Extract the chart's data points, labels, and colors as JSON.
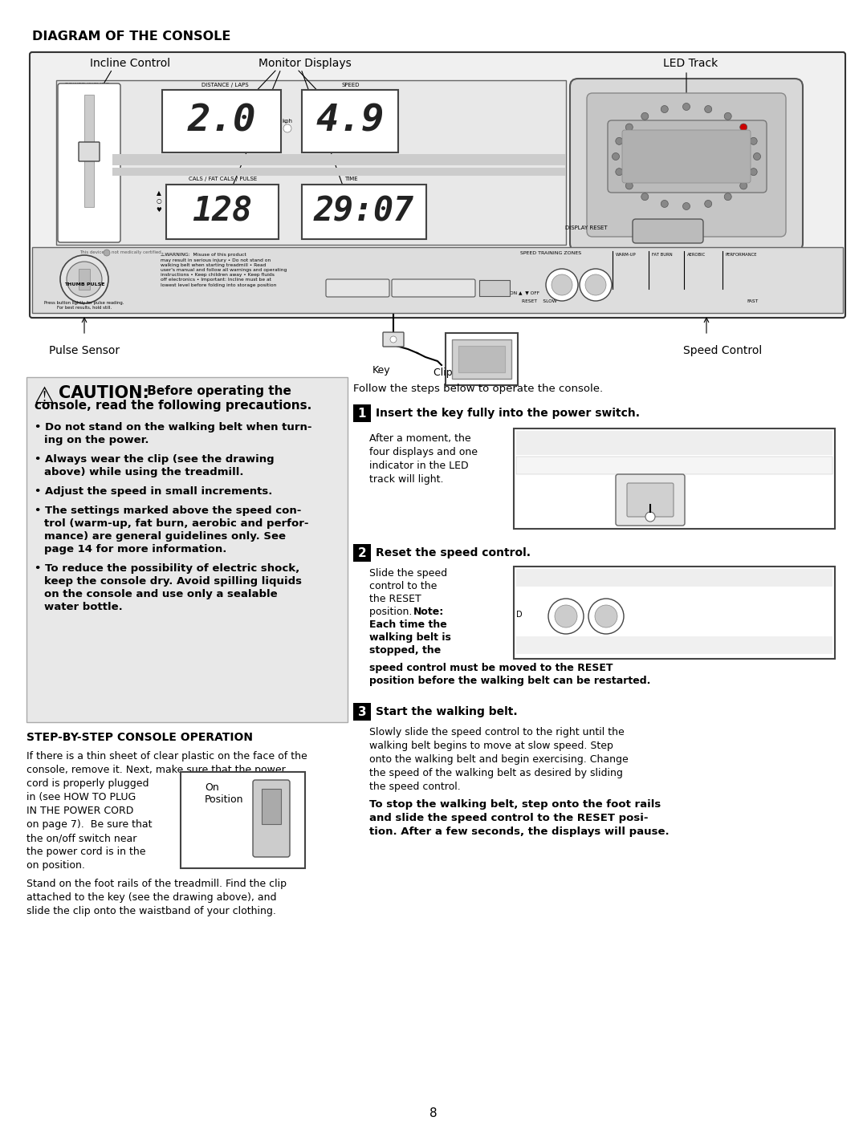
{
  "title_diagram": "DIAGRAM OF THE CONSOLE",
  "label_incline": "Incline Control",
  "label_monitor": "Monitor Displays",
  "label_led": "LED Track",
  "label_pulse": "Pulse Sensor",
  "label_key": "Key",
  "label_clip": "Clip",
  "label_speed_ctrl": "Speed Control",
  "caution_bullets": [
    "Do not stand on the walking belt when turn-\ning on the power.",
    "Always wear the clip (see the drawing\nabove) while using the treadmill.",
    "Adjust the speed in small increments.",
    "The settings marked above the speed con-\ntrol (warm-up, fat burn, aerobic and perfor-\nmance) are general guidelines only. See\npage 14 for more information.",
    "To reduce the possibility of electric shock,\nkeep the console dry. Avoid spilling liquids\non the console and use only a sealable\nwater bottle."
  ],
  "step_by_step_title": "STEP-BY-STEP CONSOLE OPERATION",
  "on_position_label": "On\nPosition",
  "follow_text": "Follow the steps below to operate the console.",
  "step1_title": "Insert the key fully into the power switch.",
  "step1_body": "After a moment, the\nfour displays and one\nindicator in the LED\ntrack will light.",
  "step2_title": "Reset the speed control.",
  "step2_body_normal": "Slide the speed\ncontrol to the\nthe RESET\nposition. ",
  "step2_body_bold": "Note:\nEach time the\nwalking belt is\nstopped, the",
  "step2_body2": "speed control must be moved to the RESET\nposition before the walking belt can be restarted.",
  "step3_title": "Start the walking belt.",
  "step3_body": "Slowly slide the speed control to the right until the\nwalking belt begins to move at slow speed. Step\nonto the walking belt and begin exercising. Change\nthe speed of the walking belt as desired by sliding\nthe speed control.",
  "step3_body2": "To stop the walking belt, step onto the foot rails\nand slide the speed control to the RESET posi-\ntion. After a few seconds, the displays will pause.",
  "page_number": "8",
  "bg_color": "#ffffff",
  "caution_bg": "#e8e8e8"
}
